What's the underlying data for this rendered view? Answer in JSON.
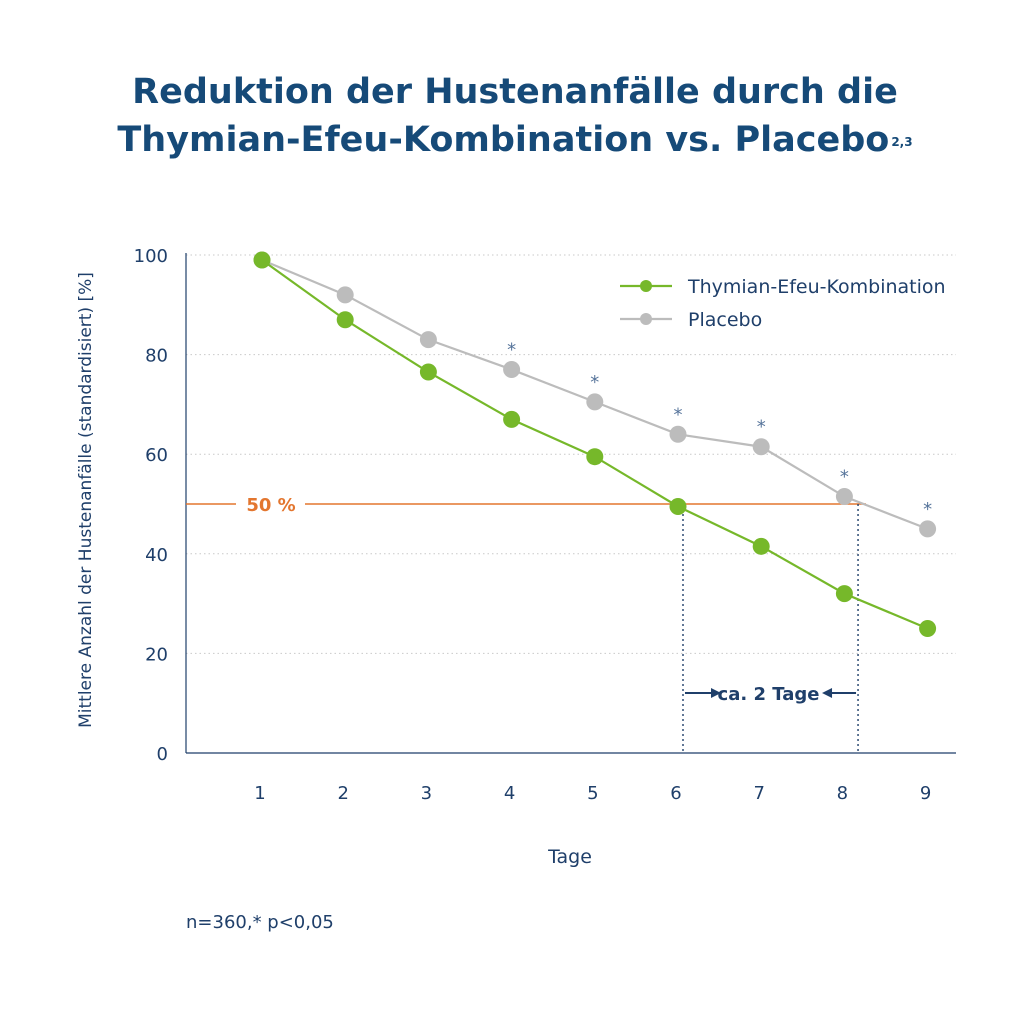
{
  "title_line1": "Reduktion der Hustenanfälle durch die",
  "title_line2": "Thymian-Efeu-Kombination vs. Placebo",
  "title_superscript": "2,3",
  "footnote": "n=360,* p<0,05",
  "chart_data": {
    "type": "line",
    "xlabel": "Tage",
    "ylabel": "Mittlere Anzahl der Hustenanfälle (standardisiert) [%]",
    "x": [
      1,
      2,
      3,
      4,
      5,
      6,
      7,
      8,
      9
    ],
    "ylim": [
      0,
      100
    ],
    "yticks": [
      0,
      20,
      40,
      60,
      80,
      100
    ],
    "grid": "horizontal dotted",
    "legend_position": "top-right",
    "series": [
      {
        "name": "Thymian-Efeu-Kombination",
        "color": "#76b82a",
        "values": [
          99,
          87,
          76.5,
          67,
          59.5,
          49.5,
          41.5,
          32,
          25
        ]
      },
      {
        "name": "Placebo",
        "color": "#bcbcbc",
        "values": [
          99,
          92,
          83,
          77,
          70.5,
          64,
          61.5,
          51.5,
          45
        ]
      }
    ],
    "significance_marker": "*",
    "significance_days": [
      4,
      5,
      6,
      7,
      8,
      9
    ],
    "reference_line": {
      "y": 50,
      "label": "50 %",
      "color": "#e3762f"
    },
    "annotation": {
      "text": "ca. 2 Tage",
      "from_day": 6,
      "to_day": 8.2
    }
  },
  "colors": {
    "title": "#164a78",
    "axis": "#1f3f6a",
    "orange": "#e3762f"
  }
}
